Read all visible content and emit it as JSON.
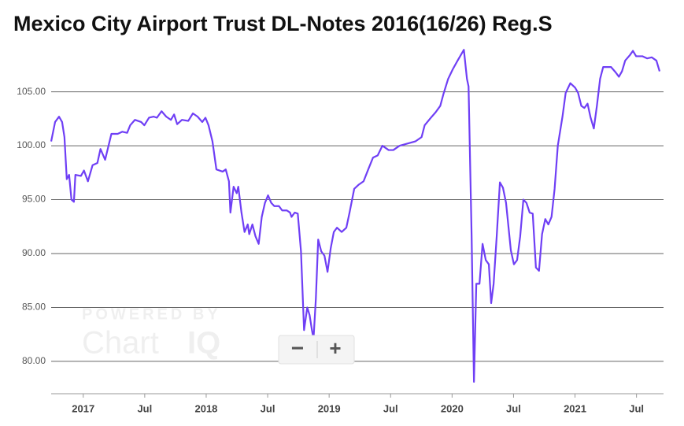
{
  "chart_data": {
    "type": "line",
    "title": "Mexico City Airport Trust DL-Notes 2016(16/26) Reg.S",
    "color": "#6f3ff5",
    "grid": true,
    "x": [
      2016.739,
      2016.771,
      2016.803,
      2016.828,
      2016.847,
      2016.866,
      2016.885,
      2016.904,
      2016.924,
      2016.936,
      2016.981,
      2017.006,
      2017.038,
      2017.076,
      2017.115,
      2017.14,
      2017.178,
      2017.229,
      2017.28,
      2017.318,
      2017.357,
      2017.382,
      2017.42,
      2017.471,
      2017.497,
      2017.535,
      2017.573,
      2017.599,
      2017.637,
      2017.675,
      2017.713,
      2017.739,
      2017.764,
      2017.803,
      2017.854,
      2017.892,
      2017.93,
      2017.968,
      2017.994,
      2018.019,
      2018.051,
      2018.083,
      2018.134,
      2018.159,
      2018.185,
      2018.197,
      2018.223,
      2018.248,
      2018.261,
      2018.287,
      2018.312,
      2018.338,
      2018.35,
      2018.376,
      2018.401,
      2018.427,
      2018.452,
      2018.478,
      2018.503,
      2018.529,
      2018.554,
      2018.592,
      2018.618,
      2018.656,
      2018.682,
      2018.694,
      2018.72,
      2018.745,
      2018.771,
      2018.796,
      2018.822,
      2018.841,
      2018.86,
      2018.873,
      2018.892,
      2018.911,
      2018.936,
      2018.962,
      2018.987,
      2019.013,
      2019.038,
      2019.064,
      2019.102,
      2019.14,
      2019.166,
      2019.204,
      2019.242,
      2019.28,
      2019.318,
      2019.357,
      2019.395,
      2019.433,
      2019.484,
      2019.522,
      2019.573,
      2019.637,
      2019.701,
      2019.752,
      2019.777,
      2019.828,
      2019.866,
      2019.904,
      2019.93,
      2019.968,
      2020.006,
      2020.045,
      2020.096,
      2020.121,
      2020.134,
      2020.159,
      2020.178,
      2020.197,
      2020.223,
      2020.248,
      2020.274,
      2020.299,
      2020.318,
      2020.338,
      2020.363,
      2020.389,
      2020.414,
      2020.439,
      2020.478,
      2020.503,
      2020.529,
      2020.554,
      2020.58,
      2020.605,
      2020.631,
      2020.656,
      2020.682,
      2020.707,
      2020.732,
      2020.758,
      2020.783,
      2020.809,
      2020.834,
      2020.86,
      2020.898,
      2020.924,
      2020.962,
      2021.0,
      2021.025,
      2021.051,
      2021.076,
      2021.102,
      2021.127,
      2021.153,
      2021.178,
      2021.204,
      2021.229,
      2021.255,
      2021.293,
      2021.331,
      2021.357,
      2021.382,
      2021.408,
      2021.446,
      2021.471,
      2021.497,
      2021.548,
      2021.586,
      2021.624,
      2021.662,
      2021.688
    ],
    "values": [
      100.4,
      102.2,
      102.7,
      102.2,
      100.8,
      96.9,
      97.3,
      95.0,
      94.8,
      97.3,
      97.2,
      97.7,
      96.7,
      98.2,
      98.4,
      99.7,
      98.7,
      101.1,
      101.1,
      101.3,
      101.2,
      101.9,
      102.4,
      102.2,
      101.9,
      102.6,
      102.7,
      102.6,
      103.2,
      102.7,
      102.4,
      102.9,
      102.0,
      102.4,
      102.3,
      103.0,
      102.7,
      102.2,
      102.6,
      101.9,
      100.4,
      97.8,
      97.6,
      97.8,
      96.7,
      93.8,
      96.2,
      95.6,
      96.2,
      93.8,
      92.0,
      92.7,
      91.8,
      92.7,
      91.6,
      90.9,
      93.4,
      94.7,
      95.4,
      94.7,
      94.4,
      94.4,
      94.0,
      94.0,
      93.8,
      93.4,
      93.8,
      93.7,
      90.2,
      82.9,
      85.0,
      84.3,
      82.9,
      82.1,
      85.8,
      91.3,
      90.2,
      89.8,
      88.3,
      90.5,
      92.0,
      92.4,
      92.0,
      92.4,
      93.8,
      96.0,
      96.4,
      96.7,
      97.8,
      98.9,
      99.1,
      100.0,
      99.6,
      99.6,
      100.0,
      100.2,
      100.4,
      100.8,
      101.9,
      102.6,
      103.1,
      103.7,
      104.8,
      106.2,
      107.1,
      107.9,
      108.9,
      106.2,
      105.5,
      91.6,
      78.1,
      87.2,
      87.2,
      90.9,
      89.4,
      89.0,
      85.4,
      87.2,
      91.6,
      96.6,
      96.1,
      94.7,
      90.3,
      89.0,
      89.4,
      91.6,
      95.0,
      94.7,
      93.8,
      93.7,
      88.7,
      88.4,
      91.8,
      93.2,
      92.7,
      93.4,
      96.0,
      100.0,
      102.7,
      104.9,
      105.8,
      105.4,
      104.9,
      103.7,
      103.5,
      103.9,
      102.6,
      101.6,
      103.7,
      106.2,
      107.3,
      107.3,
      107.3,
      106.8,
      106.4,
      106.9,
      107.9,
      108.4,
      108.8,
      108.3,
      108.3,
      108.1,
      108.2,
      107.9,
      106.9
    ],
    "xlim": [
      2016.739,
      2021.72
    ],
    "xticks": [
      {
        "value": 2017,
        "label": "2017"
      },
      {
        "value": 2017.5,
        "label": "Jul"
      },
      {
        "value": 2018,
        "label": "2018"
      },
      {
        "value": 2018.5,
        "label": "Jul"
      },
      {
        "value": 2019,
        "label": "2019"
      },
      {
        "value": 2019.5,
        "label": "Jul"
      },
      {
        "value": 2020,
        "label": "2020"
      },
      {
        "value": 2020.5,
        "label": "Jul"
      },
      {
        "value": 2021,
        "label": "2021"
      },
      {
        "value": 2021.5,
        "label": "Jul"
      }
    ],
    "ylim": [
      77,
      109.5
    ],
    "yticks": [
      {
        "value": 80,
        "label": "80.00"
      },
      {
        "value": 85,
        "label": "85.00"
      },
      {
        "value": 90,
        "label": "90.00"
      },
      {
        "value": 95,
        "label": "95.00"
      },
      {
        "value": 100,
        "label": "100.00"
      },
      {
        "value": 105,
        "label": "105.00"
      }
    ]
  },
  "watermark": {
    "top": "POWERED BY",
    "brand": "Chart",
    "brand_suffix": "IQ"
  },
  "controls": {
    "zoom_out": "−",
    "zoom_in": "+"
  }
}
